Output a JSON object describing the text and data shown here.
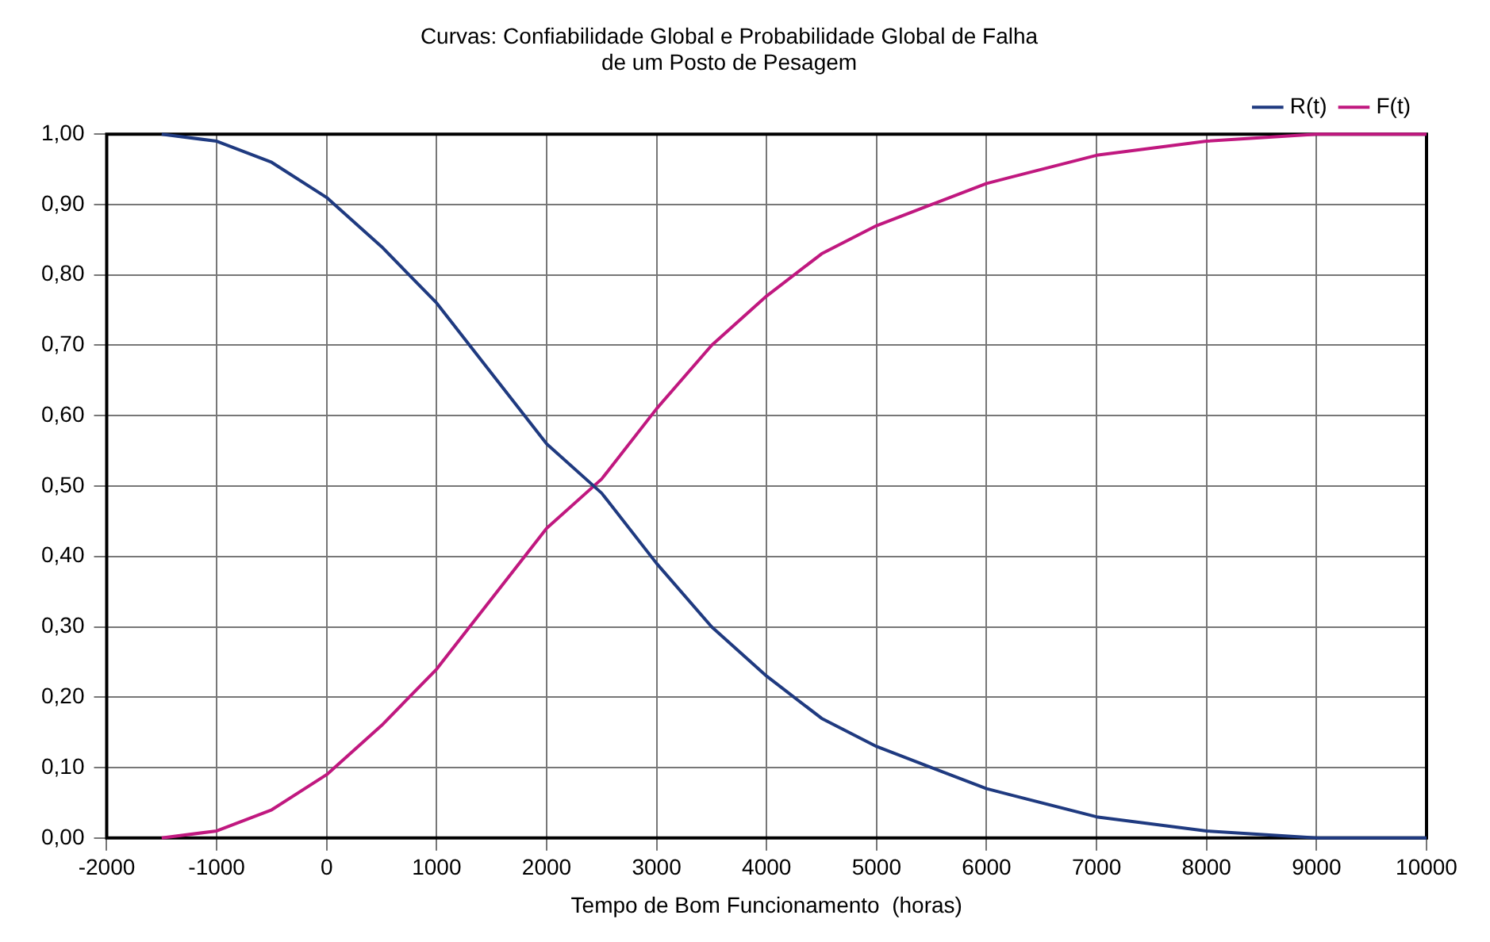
{
  "chart_data": {
    "type": "line",
    "title": "Curvas: Confiabilidade Global e Probabilidade Global de Falha\nde um Posto de Pesagem",
    "xlabel": "Tempo de Bom Funcionamento  (horas)",
    "x": [
      -1500,
      -1000,
      -500,
      0,
      500,
      1000,
      1500,
      2000,
      2500,
      3000,
      3500,
      4000,
      4500,
      5000,
      5500,
      6000,
      7000,
      8000,
      9000,
      10000
    ],
    "series": [
      {
        "name": "R(t)",
        "color": "#1f3a80",
        "values": [
          1.0,
          0.99,
          0.96,
          0.91,
          0.84,
          0.76,
          0.66,
          0.56,
          0.49,
          0.39,
          0.3,
          0.23,
          0.17,
          0.13,
          0.1,
          0.07,
          0.03,
          0.01,
          0.0,
          0.0
        ]
      },
      {
        "name": "F(t)",
        "color": "#c0187f",
        "values": [
          0.0,
          0.01,
          0.04,
          0.09,
          0.16,
          0.24,
          0.34,
          0.44,
          0.51,
          0.61,
          0.7,
          0.77,
          0.83,
          0.87,
          0.9,
          0.93,
          0.97,
          0.99,
          1.0,
          1.0
        ]
      }
    ],
    "xlim": [
      -2000,
      10000
    ],
    "xticks": [
      -2000,
      -1000,
      0,
      1000,
      2000,
      3000,
      4000,
      5000,
      6000,
      7000,
      8000,
      9000,
      10000
    ],
    "ylim": [
      0,
      1
    ],
    "yticks": [
      {
        "value": 0,
        "label": "0,00"
      },
      {
        "value": 0.1,
        "label": "0,10"
      },
      {
        "value": 0.2,
        "label": "0,20"
      },
      {
        "value": 0.3,
        "label": "0,30"
      },
      {
        "value": 0.4,
        "label": "0,40"
      },
      {
        "value": 0.5,
        "label": "0,50"
      },
      {
        "value": 0.6,
        "label": "0,60"
      },
      {
        "value": 0.7,
        "label": "0,70"
      },
      {
        "value": 0.8,
        "label": "0,80"
      },
      {
        "value": 0.9,
        "label": "0,90"
      },
      {
        "value": 1,
        "label": "1,00"
      }
    ],
    "grid": true,
    "legend": "top right",
    "marker": "none",
    "line_style": "solid"
  }
}
